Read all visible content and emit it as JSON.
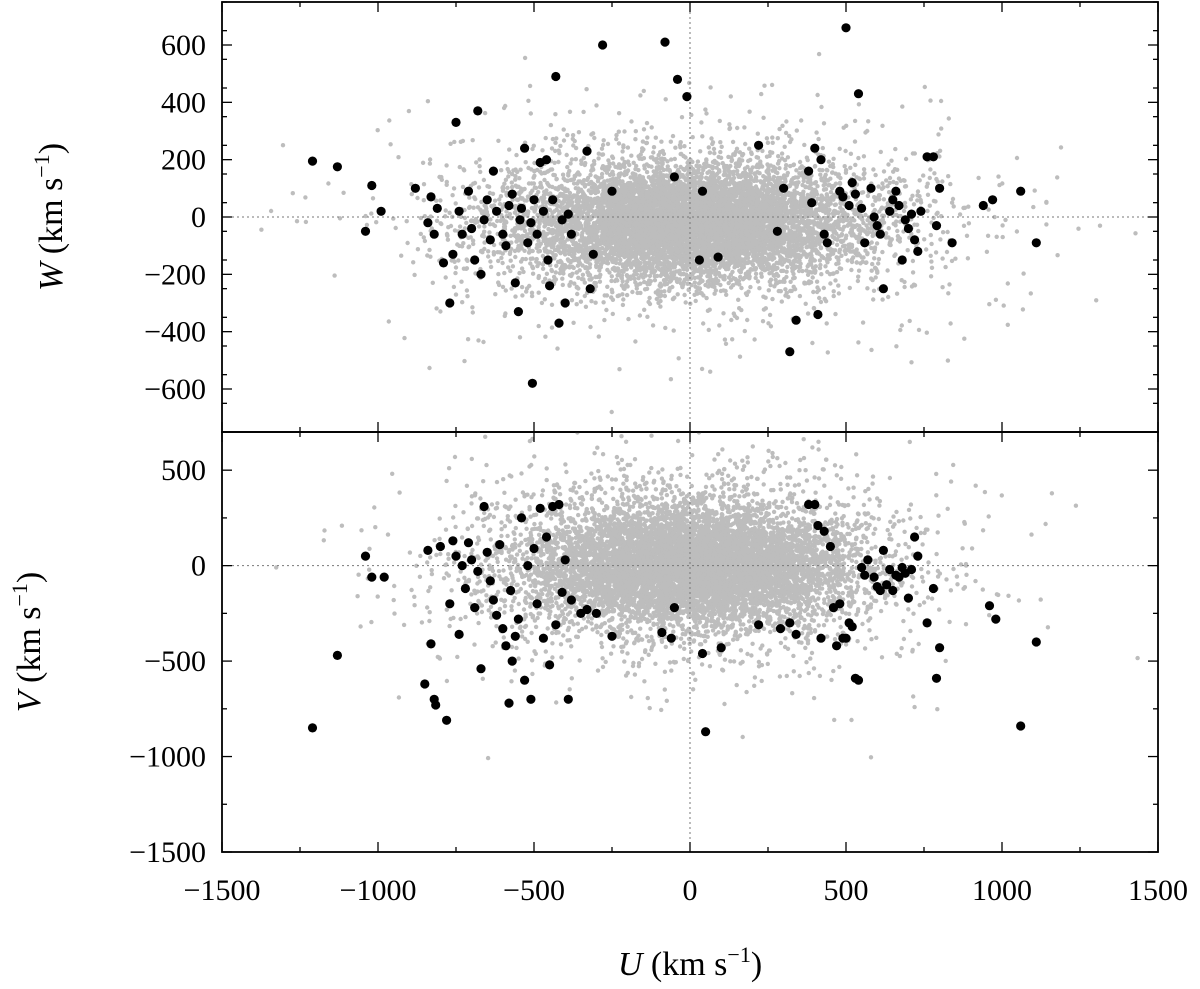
{
  "chart_data": [
    {
      "panel": "top",
      "type": "scatter",
      "xlabel": "U (km s⁻¹)",
      "ylabel": "W (km s⁻¹)",
      "xlim": [
        -1500,
        1500
      ],
      "ylim": [
        -750,
        750
      ],
      "yticks": [
        -600,
        -400,
        -200,
        0,
        200,
        400,
        600
      ],
      "zero_lines": true,
      "colors": {
        "background_stars": "#bdbdbd",
        "highlighted_stars": "#000000"
      },
      "background_cloud": {
        "description_only": false,
        "n_points": 9000,
        "core_center": [
          0,
          -20
        ],
        "core_spread": [
          260,
          90
        ],
        "halo_spread": [
          420,
          170
        ],
        "gap_near_u": [
          -420,
          380
        ]
      },
      "highlighted": [
        [
          -1210,
          195
        ],
        [
          -1130,
          175
        ],
        [
          -1020,
          110
        ],
        [
          -990,
          20
        ],
        [
          -1040,
          -50
        ],
        [
          -880,
          100
        ],
        [
          -830,
          70
        ],
        [
          -810,
          30
        ],
        [
          -840,
          -20
        ],
        [
          -820,
          -60
        ],
        [
          -790,
          -160
        ],
        [
          -770,
          -300
        ],
        [
          -760,
          -130
        ],
        [
          -750,
          330
        ],
        [
          -740,
          20
        ],
        [
          -730,
          -60
        ],
        [
          -710,
          90
        ],
        [
          -700,
          -40
        ],
        [
          -690,
          -150
        ],
        [
          -680,
          370
        ],
        [
          -670,
          -200
        ],
        [
          -660,
          -10
        ],
        [
          -650,
          60
        ],
        [
          -640,
          -80
        ],
        [
          -630,
          160
        ],
        [
          -620,
          20
        ],
        [
          -600,
          -60
        ],
        [
          -590,
          -100
        ],
        [
          -580,
          40
        ],
        [
          -570,
          80
        ],
        [
          -560,
          -230
        ],
        [
          -550,
          -330
        ],
        [
          -545,
          -10
        ],
        [
          -540,
          30
        ],
        [
          -530,
          240
        ],
        [
          -520,
          -90
        ],
        [
          -510,
          -20
        ],
        [
          -505,
          -580
        ],
        [
          -500,
          60
        ],
        [
          -490,
          -60
        ],
        [
          -480,
          190
        ],
        [
          -470,
          20
        ],
        [
          -460,
          200
        ],
        [
          -455,
          -150
        ],
        [
          -450,
          -240
        ],
        [
          -440,
          60
        ],
        [
          -430,
          490
        ],
        [
          -420,
          -370
        ],
        [
          -410,
          -10
        ],
        [
          -400,
          -300
        ],
        [
          -390,
          10
        ],
        [
          -380,
          -60
        ],
        [
          -330,
          230
        ],
        [
          -320,
          -250
        ],
        [
          -310,
          -130
        ],
        [
          -280,
          600
        ],
        [
          -250,
          90
        ],
        [
          -80,
          610
        ],
        [
          -50,
          140
        ],
        [
          -40,
          480
        ],
        [
          -10,
          420
        ],
        [
          40,
          90
        ],
        [
          30,
          -150
        ],
        [
          90,
          -140
        ],
        [
          220,
          250
        ],
        [
          280,
          -50
        ],
        [
          300,
          100
        ],
        [
          320,
          -470
        ],
        [
          340,
          -360
        ],
        [
          380,
          160
        ],
        [
          390,
          50
        ],
        [
          400,
          240
        ],
        [
          410,
          -340
        ],
        [
          420,
          200
        ],
        [
          430,
          -60
        ],
        [
          440,
          -90
        ],
        [
          480,
          90
        ],
        [
          490,
          70
        ],
        [
          500,
          660
        ],
        [
          510,
          40
        ],
        [
          520,
          120
        ],
        [
          530,
          80
        ],
        [
          540,
          430
        ],
        [
          550,
          30
        ],
        [
          560,
          -90
        ],
        [
          580,
          100
        ],
        [
          590,
          0
        ],
        [
          600,
          -30
        ],
        [
          610,
          -60
        ],
        [
          620,
          -250
        ],
        [
          640,
          20
        ],
        [
          650,
          60
        ],
        [
          660,
          90
        ],
        [
          670,
          40
        ],
        [
          680,
          -150
        ],
        [
          690,
          -10
        ],
        [
          700,
          -40
        ],
        [
          710,
          10
        ],
        [
          720,
          -80
        ],
        [
          730,
          -120
        ],
        [
          740,
          20
        ],
        [
          760,
          210
        ],
        [
          780,
          210
        ],
        [
          790,
          -30
        ],
        [
          800,
          100
        ],
        [
          840,
          -90
        ],
        [
          940,
          40
        ],
        [
          970,
          60
        ],
        [
          1060,
          90
        ],
        [
          1110,
          -90
        ]
      ]
    },
    {
      "panel": "bottom",
      "type": "scatter",
      "xlabel": "U (km s⁻¹)",
      "ylabel": "V (km s⁻¹)",
      "xlim": [
        -1500,
        1500
      ],
      "ylim": [
        -1500,
        700
      ],
      "xticks": [
        -1500,
        -1000,
        -500,
        0,
        500,
        1000,
        1500
      ],
      "yticks": [
        -1500,
        -1000,
        -500,
        0,
        500
      ],
      "zero_lines": true,
      "colors": {
        "background_stars": "#bdbdbd",
        "highlighted_stars": "#000000"
      },
      "background_cloud": {
        "n_points": 9000,
        "core_center": [
          0,
          0
        ],
        "core_spread": [
          250,
          150
        ],
        "halo_spread": [
          380,
          280
        ]
      },
      "highlighted": [
        [
          -1210,
          -850
        ],
        [
          -1130,
          -470
        ],
        [
          -1040,
          50
        ],
        [
          -1020,
          -60
        ],
        [
          -980,
          -60
        ],
        [
          -850,
          -620
        ],
        [
          -840,
          80
        ],
        [
          -830,
          -410
        ],
        [
          -820,
          -700
        ],
        [
          -815,
          -730
        ],
        [
          -800,
          100
        ],
        [
          -780,
          -810
        ],
        [
          -770,
          -200
        ],
        [
          -760,
          130
        ],
        [
          -750,
          50
        ],
        [
          -740,
          -360
        ],
        [
          -730,
          0
        ],
        [
          -720,
          -120
        ],
        [
          -710,
          120
        ],
        [
          -700,
          30
        ],
        [
          -690,
          -220
        ],
        [
          -680,
          -30
        ],
        [
          -670,
          -540
        ],
        [
          -660,
          310
        ],
        [
          -650,
          70
        ],
        [
          -640,
          -80
        ],
        [
          -630,
          -180
        ],
        [
          -620,
          -260
        ],
        [
          -610,
          110
        ],
        [
          -600,
          -330
        ],
        [
          -590,
          -420
        ],
        [
          -580,
          -720
        ],
        [
          -575,
          -130
        ],
        [
          -570,
          -500
        ],
        [
          -560,
          -370
        ],
        [
          -550,
          -280
        ],
        [
          -540,
          250
        ],
        [
          -530,
          -600
        ],
        [
          -520,
          0
        ],
        [
          -510,
          -700
        ],
        [
          -500,
          90
        ],
        [
          -490,
          -200
        ],
        [
          -480,
          300
        ],
        [
          -470,
          -380
        ],
        [
          -460,
          150
        ],
        [
          -450,
          -520
        ],
        [
          -440,
          310
        ],
        [
          -430,
          -310
        ],
        [
          -420,
          320
        ],
        [
          -410,
          -140
        ],
        [
          -400,
          30
        ],
        [
          -390,
          -700
        ],
        [
          -380,
          -180
        ],
        [
          -350,
          -250
        ],
        [
          -330,
          -230
        ],
        [
          -300,
          -250
        ],
        [
          -250,
          -370
        ],
        [
          -90,
          -350
        ],
        [
          -60,
          -380
        ],
        [
          -50,
          -220
        ],
        [
          40,
          -460
        ],
        [
          100,
          -430
        ],
        [
          50,
          -870
        ],
        [
          220,
          -310
        ],
        [
          290,
          -330
        ],
        [
          320,
          -300
        ],
        [
          340,
          -360
        ],
        [
          380,
          320
        ],
        [
          400,
          320
        ],
        [
          410,
          210
        ],
        [
          420,
          -380
        ],
        [
          430,
          180
        ],
        [
          450,
          100
        ],
        [
          460,
          -220
        ],
        [
          470,
          -420
        ],
        [
          480,
          -200
        ],
        [
          490,
          -380
        ],
        [
          500,
          -380
        ],
        [
          510,
          -300
        ],
        [
          520,
          -320
        ],
        [
          530,
          -590
        ],
        [
          540,
          -600
        ],
        [
          550,
          -10
        ],
        [
          560,
          -50
        ],
        [
          570,
          30
        ],
        [
          590,
          -60
        ],
        [
          600,
          -110
        ],
        [
          610,
          -130
        ],
        [
          620,
          80
        ],
        [
          630,
          -100
        ],
        [
          640,
          -20
        ],
        [
          650,
          -130
        ],
        [
          660,
          -50
        ],
        [
          670,
          -60
        ],
        [
          680,
          -10
        ],
        [
          690,
          -40
        ],
        [
          700,
          -170
        ],
        [
          710,
          -20
        ],
        [
          720,
          150
        ],
        [
          730,
          50
        ],
        [
          760,
          -300
        ],
        [
          780,
          -120
        ],
        [
          790,
          -590
        ],
        [
          800,
          -430
        ],
        [
          960,
          -210
        ],
        [
          980,
          -280
        ],
        [
          1060,
          -840
        ],
        [
          1110,
          -400
        ]
      ]
    }
  ],
  "labels": {
    "top_y_var": "W",
    "bottom_y_var": "V",
    "x_var": "U",
    "unit_main": "(km s",
    "unit_exp": "−1",
    "unit_close": ")"
  },
  "tick_text": {
    "top_y": [
      "−600",
      "−400",
      "−200",
      "0",
      "200",
      "400",
      "600"
    ],
    "bottom_y": [
      "−1500",
      "−1000",
      "−500",
      "0",
      "500"
    ],
    "x": [
      "−1500",
      "−1000",
      "−500",
      "0",
      "500",
      "1000",
      "1500"
    ]
  }
}
